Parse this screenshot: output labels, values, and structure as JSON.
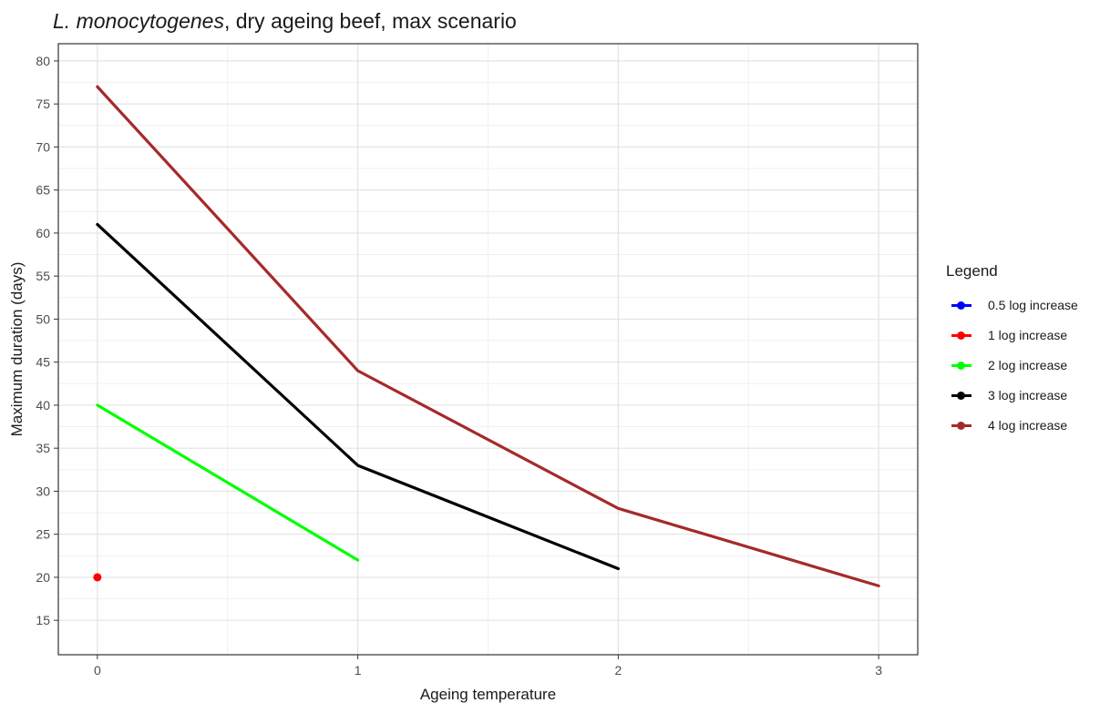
{
  "chart_data": {
    "type": "line",
    "title_italic": "L. monocytogenes",
    "title_rest": ", dry ageing beef, max scenario",
    "xlabel": "Ageing temperature",
    "ylabel": "Maximum duration (days)",
    "xlim": [
      -0.15,
      3.15
    ],
    "ylim": [
      11,
      82
    ],
    "x_ticks": [
      0,
      1,
      2,
      3
    ],
    "y_ticks": [
      15,
      20,
      25,
      30,
      35,
      40,
      45,
      50,
      55,
      60,
      65,
      70,
      75,
      80
    ],
    "grid": true,
    "legend_title": "Legend",
    "legend_position": "right",
    "series": [
      {
        "name": "0.5 log increase",
        "color": "#0000ff",
        "x": [],
        "y": []
      },
      {
        "name": "1 log increase",
        "color": "#ff0000",
        "x": [
          0
        ],
        "y": [
          20
        ]
      },
      {
        "name": "2 log increase",
        "color": "#00ff00",
        "x": [
          0,
          1
        ],
        "y": [
          40,
          22
        ]
      },
      {
        "name": "3 log increase",
        "color": "#000000",
        "x": [
          0,
          1,
          2
        ],
        "y": [
          61,
          33,
          21
        ]
      },
      {
        "name": "4 log increase",
        "color": "#a52a2a",
        "x": [
          0,
          1,
          2,
          3
        ],
        "y": [
          77,
          44,
          28,
          19
        ]
      }
    ]
  }
}
